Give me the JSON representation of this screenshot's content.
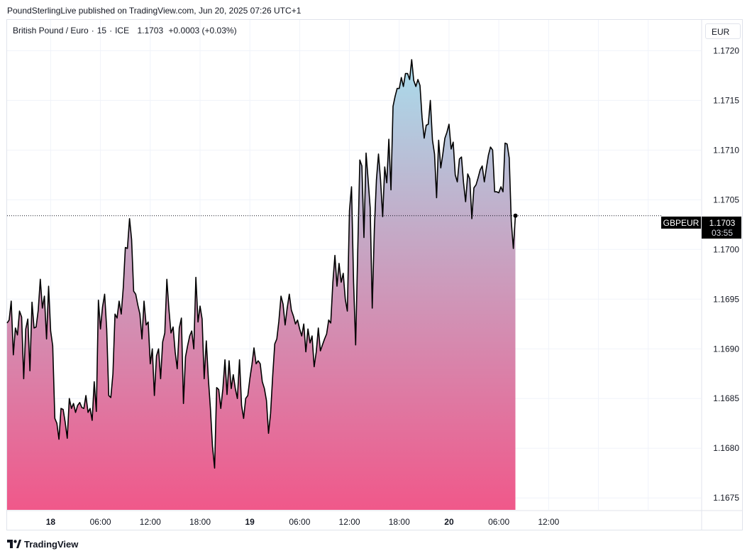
{
  "header": {
    "published": "PoundSterlingLive published on TradingView.com, Jun 20, 2025 07:26 UTC+1"
  },
  "legend": {
    "symbol": "British Pound / Euro",
    "sep1": "·",
    "interval": "15",
    "sep2": "·",
    "exchange": "ICE",
    "last": "1.1703",
    "change": "+0.0003 (+0.03%)"
  },
  "currency_badge": "EUR",
  "footer": {
    "brand": "TradingView"
  },
  "colors": {
    "line": "#000000",
    "fill_top": "#a9dcec",
    "fill_bottom": "#f0588a",
    "price_label_bg": "#000000"
  },
  "chart_data": {
    "type": "area",
    "title": "British Pound / Euro · 15 · ICE",
    "ylabel": "EUR",
    "ylim": [
      1.16738,
      1.17231
    ],
    "y_ticks": [
      1.172,
      1.1715,
      1.171,
      1.1705,
      1.17,
      1.1695,
      1.169,
      1.1685,
      1.168,
      1.1675
    ],
    "y_tick_labels": [
      "1.1720",
      "1.1715",
      "1.1710",
      "1.1705",
      "1.1700",
      "1.1695",
      "1.1690",
      "1.1685",
      "1.1680",
      "1.1675"
    ],
    "x_unit": "hours since Jun 17 12:45",
    "xlim": [
      0,
      83.6
    ],
    "x_ticks": [
      5.25,
      11.25,
      17.25,
      23.25,
      29.25,
      35.25,
      41.25,
      47.25,
      53.25,
      59.25,
      65.25,
      71.25,
      77.25
    ],
    "x_tick_labels": [
      "18",
      "06:00",
      "12:00",
      "18:00",
      "19",
      "06:00",
      "12:00",
      "18:00",
      "20",
      "06:00",
      "12:00"
    ],
    "x_tick_bold": [
      true,
      false,
      false,
      false,
      true,
      false,
      false,
      false,
      true,
      false,
      false
    ],
    "x_tick_label_positions": [
      5.25,
      11.25,
      17.25,
      23.25,
      29.25,
      35.25,
      41.25,
      47.25,
      53.25,
      59.25,
      65.25
    ],
    "series": [
      {
        "name": "GBPEUR",
        "values": [
          1.16926,
          1.16929,
          1.16948,
          1.16894,
          1.16921,
          1.16914,
          1.16938,
          1.16932,
          1.1687,
          1.1692,
          1.1693,
          1.16878,
          1.16947,
          1.16921,
          1.16922,
          1.16939,
          1.1697,
          1.16941,
          1.16953,
          1.1691,
          1.16963,
          1.16918,
          1.16903,
          1.1683,
          1.16825,
          1.16809,
          1.1684,
          1.16839,
          1.16826,
          1.1681,
          1.1685,
          1.1684,
          1.16845,
          1.16836,
          1.16843,
          1.16846,
          1.16841,
          1.1684,
          1.16853,
          1.16836,
          1.1684,
          1.16828,
          1.16867,
          1.16837,
          1.16949,
          1.1692,
          1.16942,
          1.16955,
          1.1692,
          1.16853,
          1.16851,
          1.16875,
          1.16935,
          1.16931,
          1.16948,
          1.16935,
          1.16962,
          1.17002,
          1.17001,
          1.17031,
          1.1701,
          1.16958,
          1.16955,
          1.16944,
          1.16935,
          1.1691,
          1.16948,
          1.16924,
          1.16927,
          1.16885,
          1.169,
          1.16853,
          1.16893,
          1.169,
          1.1687,
          1.16907,
          1.16916,
          1.1697,
          1.1694,
          1.16916,
          1.16922,
          1.16897,
          1.1688,
          1.16921,
          1.16931,
          1.16845,
          1.16892,
          1.16903,
          1.16913,
          1.16918,
          1.169,
          1.16972,
          1.16927,
          1.16943,
          1.1693,
          1.1687,
          1.16908,
          1.1687,
          1.1684,
          1.16802,
          1.1678,
          1.16861,
          1.16859,
          1.1684,
          1.1686,
          1.16889,
          1.16854,
          1.16888,
          1.1686,
          1.16874,
          1.1686,
          1.1685,
          1.16889,
          1.16843,
          1.1683,
          1.1685,
          1.16853,
          1.1687,
          1.16884,
          1.16901,
          1.16885,
          1.16888,
          1.16885,
          1.16867,
          1.1686,
          1.16848,
          1.16815,
          1.16835,
          1.16873,
          1.16905,
          1.1691,
          1.16928,
          1.16953,
          1.16945,
          1.16924,
          1.16941,
          1.16955,
          1.16939,
          1.16933,
          1.16925,
          1.16929,
          1.1692,
          1.16913,
          1.16925,
          1.16897,
          1.1692,
          1.16906,
          1.16913,
          1.16882,
          1.16897,
          1.16921,
          1.16898,
          1.16904,
          1.1691,
          1.16915,
          1.16929,
          1.16926,
          1.16967,
          1.16994,
          1.16963,
          1.16986,
          1.16967,
          1.16976,
          1.1695,
          1.16938,
          1.17039,
          1.17063,
          1.16967,
          1.16904,
          1.17,
          1.1709,
          1.17084,
          1.17012,
          1.17097,
          1.1707,
          1.17042,
          1.16941,
          1.17021,
          1.1707,
          1.17096,
          1.1707,
          1.17033,
          1.17083,
          1.17067,
          1.17111,
          1.1706,
          1.17144,
          1.17154,
          1.17162,
          1.17162,
          1.17173,
          1.17164,
          1.17177,
          1.17177,
          1.17171,
          1.17191,
          1.1717,
          1.17164,
          1.17171,
          1.17165,
          1.17133,
          1.17112,
          1.17125,
          1.17126,
          1.1715,
          1.1711,
          1.17096,
          1.17052,
          1.1711,
          1.17082,
          1.17096,
          1.17112,
          1.17118,
          1.17126,
          1.17101,
          1.17108,
          1.17075,
          1.17068,
          1.17091,
          1.17093,
          1.17067,
          1.17048,
          1.17076,
          1.17071,
          1.17031,
          1.17062,
          1.17065,
          1.17072,
          1.1708,
          1.17084,
          1.17068,
          1.17082,
          1.17095,
          1.17103,
          1.171,
          1.17058,
          1.17058,
          1.17057,
          1.17063,
          1.17058,
          1.17107,
          1.17106,
          1.17092,
          1.17028,
          1.17001,
          1.17034
        ],
        "time_step_hours": 0.25
      }
    ],
    "price_label": {
      "name": "GBPEUR",
      "value": "1.1703",
      "countdown": "03:55",
      "level": 1.17034
    }
  }
}
